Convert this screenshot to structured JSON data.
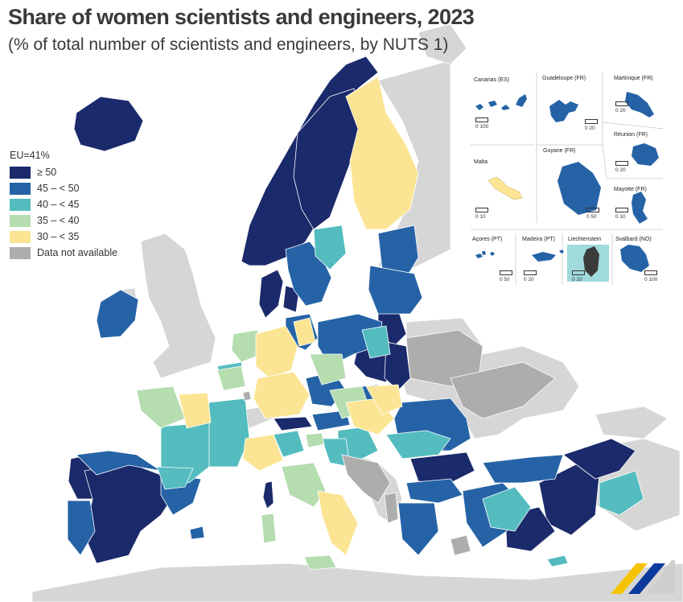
{
  "title": "Share of women scientists and engineers, 2023",
  "subtitle": "(% of total number of scientists and engineers, by NUTS 1)",
  "colors": {
    "c50": "#1b2a6b",
    "c45": "#2563a6",
    "c40": "#54bcbf",
    "c35": "#b5ddb0",
    "c30": "#fbe594",
    "na": "#adadad",
    "nonEU": "#d6d6d6",
    "sea": "#ffffff"
  },
  "legend": {
    "header": "EU=41%",
    "items": [
      {
        "label": "≥ 50",
        "color": "#1b2a6b"
      },
      {
        "label": "45 – < 50",
        "color": "#2563a6"
      },
      {
        "label": "40 – < 45",
        "color": "#54bcbf"
      },
      {
        "label": "35 – < 40",
        "color": "#b5ddb0"
      },
      {
        "label": "30 – < 35",
        "color": "#fbe594"
      },
      {
        "label": "Data not available",
        "color": "#adadad"
      }
    ]
  },
  "insets": [
    {
      "name": "Canarias (ES)",
      "scale": "0   100"
    },
    {
      "name": "Guadeloupe (FR)",
      "scale": "0   20"
    },
    {
      "name": "Martinique (FR)",
      "scale": "0   20"
    },
    {
      "name": "Réunion (FR)",
      "scale": "0   20"
    },
    {
      "name": "Malta",
      "scale": "0   10"
    },
    {
      "name": "Guyane (FR)",
      "scale": "0   50"
    },
    {
      "name": "Mayotte (FR)",
      "scale": "0   10"
    },
    {
      "name": "Açores (PT)",
      "scale": "0   50"
    },
    {
      "name": "Madeira (PT)",
      "scale": "0   20"
    },
    {
      "name": "Liechtenstein",
      "scale": "0   10"
    },
    {
      "name": "Svalbard (NO)",
      "scale": "0   100"
    }
  ]
}
